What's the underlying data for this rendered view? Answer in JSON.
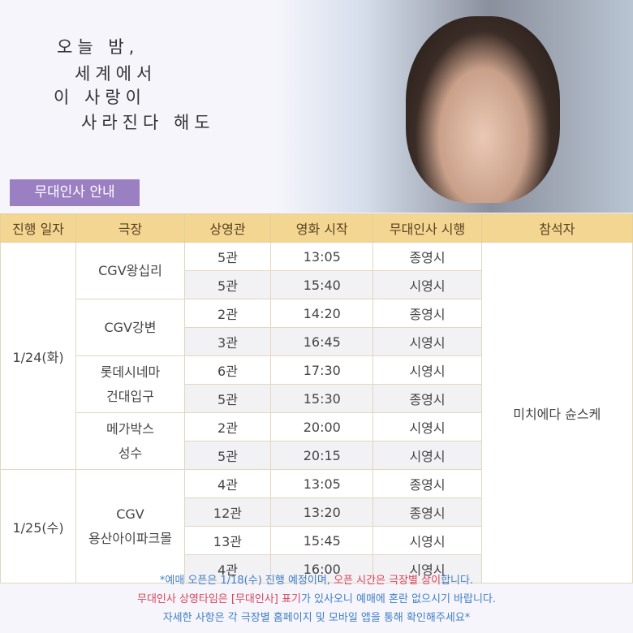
{
  "header": {
    "title_lines": [
      "오늘 밤,",
      "세계에서",
      "이 사랑이",
      "사라진다 해도"
    ],
    "section_label": "무대인사 안내"
  },
  "table": {
    "columns": [
      "진행 일자",
      "극장",
      "상영관",
      "영화 시작",
      "무대인사 시행",
      "참석자"
    ],
    "attendee": "미치에다 슌스케",
    "schedule": [
      {
        "date": "1/24(화)",
        "theaters": [
          {
            "name_lines": [
              "CGV왕십리"
            ],
            "shows": [
              [
                "5관",
                "13:05",
                "종영시"
              ],
              [
                "5관",
                "15:40",
                "시영시"
              ]
            ]
          },
          {
            "name_lines": [
              "CGV강변"
            ],
            "shows": [
              [
                "2관",
                "14:20",
                "종영시"
              ],
              [
                "3관",
                "16:45",
                "시영시"
              ]
            ]
          },
          {
            "name_lines": [
              "롯데시네마",
              "건대입구"
            ],
            "shows": [
              [
                "6관",
                "17:30",
                "시영시"
              ],
              [
                "5관",
                "15:30",
                "종영시"
              ]
            ]
          },
          {
            "name_lines": [
              "메가박스",
              "성수"
            ],
            "shows": [
              [
                "2관",
                "20:00",
                "시영시"
              ],
              [
                "5관",
                "20:15",
                "시영시"
              ]
            ]
          }
        ]
      },
      {
        "date": "1/25(수)",
        "theaters": [
          {
            "name_lines": [
              "CGV",
              "용산아이파크몰"
            ],
            "shows": [
              [
                "4관",
                "13:05",
                "종영시"
              ],
              [
                "12관",
                "13:20",
                "종영시"
              ],
              [
                "13관",
                "15:45",
                "시영시"
              ],
              [
                "4관",
                "16:00",
                "시영시"
              ]
            ]
          }
        ]
      }
    ]
  },
  "notes": [
    [
      {
        "text": "*예매 오픈은 1/18(수) 진행 예정이며, ",
        "color": "#3f7fc8"
      },
      {
        "text": "오픈 시간은 극장별 상이",
        "color": "#d9455a"
      },
      {
        "text": "합니다.",
        "color": "#3f7fc8"
      }
    ],
    [
      {
        "text": "무대인사 상영타임은 [무대인사] 표기",
        "color": "#d9455a"
      },
      {
        "text": "가 있사오니 예매에 혼란 없으시기 바랍니다.",
        "color": "#3f7fc8"
      }
    ],
    [
      {
        "text": "자세한 사항은 각 극장별 홈페이지 및 모바일 앱을 통해 확인해주세요*",
        "color": "#3f7fc8"
      }
    ]
  ]
}
